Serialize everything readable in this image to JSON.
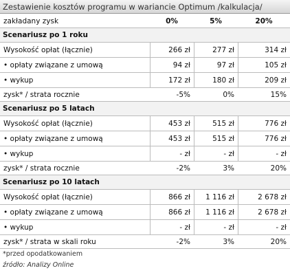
{
  "title": "Zestawienie kosztów programu w wariancie Optimum /kalkulacja/",
  "header": {
    "label": "zakładany zysk",
    "columns": [
      "0%",
      "5%",
      "20%"
    ]
  },
  "sections": [
    {
      "title": "Scenariusz po 1 roku",
      "rows": [
        {
          "label": "Wysokość opłat (łącznie)",
          "values": [
            "266 zł",
            "277 zł",
            "314 zł"
          ]
        },
        {
          "label": "• opłaty związane z umową",
          "values": [
            "94 zł",
            "97 zł",
            "105 zł"
          ]
        },
        {
          "label": "• wykup",
          "values": [
            "172 zł",
            "180 zł",
            "209 zł"
          ]
        },
        {
          "label": "zysk* / strata rocznie",
          "values": [
            "-5%",
            "0%",
            "15%"
          ]
        }
      ]
    },
    {
      "title": "Scenariusz po 5 latach",
      "rows": [
        {
          "label": "Wysokość opłat (łącznie)",
          "values": [
            "453 zł",
            "515 zł",
            "776 zł"
          ]
        },
        {
          "label": "• opłaty związane z umową",
          "values": [
            "453 zł",
            "515 zł",
            "776 zł"
          ]
        },
        {
          "label": "• wykup",
          "values": [
            "-   zł",
            "-   zł",
            "-   zł"
          ]
        },
        {
          "label": "zysk* / strata rocznie",
          "values": [
            "-2%",
            "3%",
            "20%"
          ]
        }
      ]
    },
    {
      "title": "Scenariusz po 10 latach",
      "rows": [
        {
          "label": "Wysokość opłat (łącznie)",
          "values": [
            "866 zł",
            "1 116 zł",
            "2 678 zł"
          ]
        },
        {
          "label": "• opłaty związane z umową",
          "values": [
            "866 zł",
            "1 116 zł",
            "2 678 zł"
          ]
        },
        {
          "label": "• wykup",
          "values": [
            "-   zł",
            "-   zł",
            "-   zł"
          ]
        },
        {
          "label": "zysk* / strata w skali roku",
          "values": [
            "-2%",
            "3%",
            "20%"
          ]
        }
      ]
    }
  ],
  "footnote": "*przed opodatkowaniem",
  "source": "źródło: Analizy Online"
}
